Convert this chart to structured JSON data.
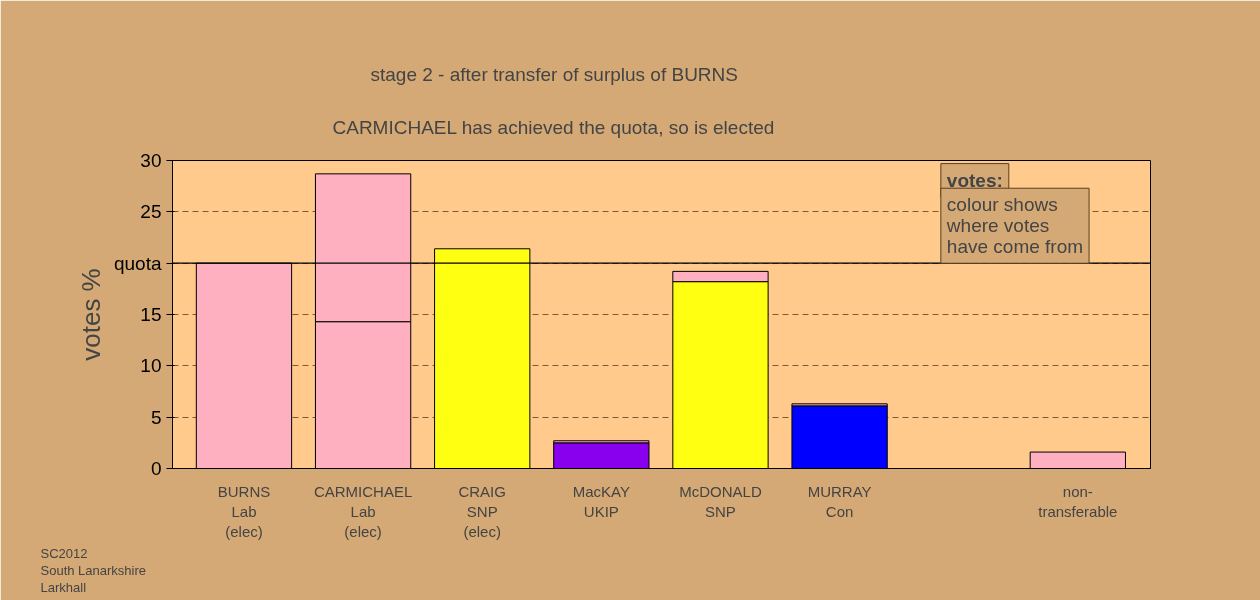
{
  "chart_data": {
    "type": "bar",
    "title": "stage 2 - after transfer of surplus of BURNS",
    "subtitle": "CARMICHAEL has achieved the quota, so is elected",
    "ylabel": "votes %",
    "categories": [
      "BURNS\nLab\n(elec)",
      "CARMICHAEL\nLab\n(elec)",
      "CRAIG\nSNP\n(elec)",
      "MacKAY\nUKIP",
      "McDONALD\nSNP",
      "MURRAY\nCon",
      null,
      "non-\ntransferable"
    ],
    "stacked": true,
    "series": [
      {
        "colors": [
          "#ffb0c0",
          "#ffb0c0",
          "#ffff11",
          "#8800ee",
          "#ffff11",
          "#0000ff",
          "#ffb0c0",
          "#ffb0c0"
        ],
        "values": [
          20,
          14.3,
          21.4,
          2.5,
          18.2,
          6.1,
          null,
          null
        ]
      },
      {
        "color": "#ffb0c0",
        "values": [
          null,
          14.4,
          null,
          0.2,
          1.0,
          0.2,
          null,
          1.6
        ]
      }
    ],
    "ylim": [
      0,
      30
    ],
    "yticks": [
      0,
      5,
      10,
      15,
      {
        "value": 20,
        "label": "quota"
      },
      25,
      30
    ],
    "ref_lines": [
      {
        "axis": "y",
        "value": 20,
        "color": "#000000",
        "line_style": "solid"
      }
    ],
    "grid": "y",
    "annotations": [
      "votes:",
      "colour shows\nwhere votes\nhave come from",
      "SC2012\nSouth Lanarkshire\nLarkhall"
    ]
  }
}
